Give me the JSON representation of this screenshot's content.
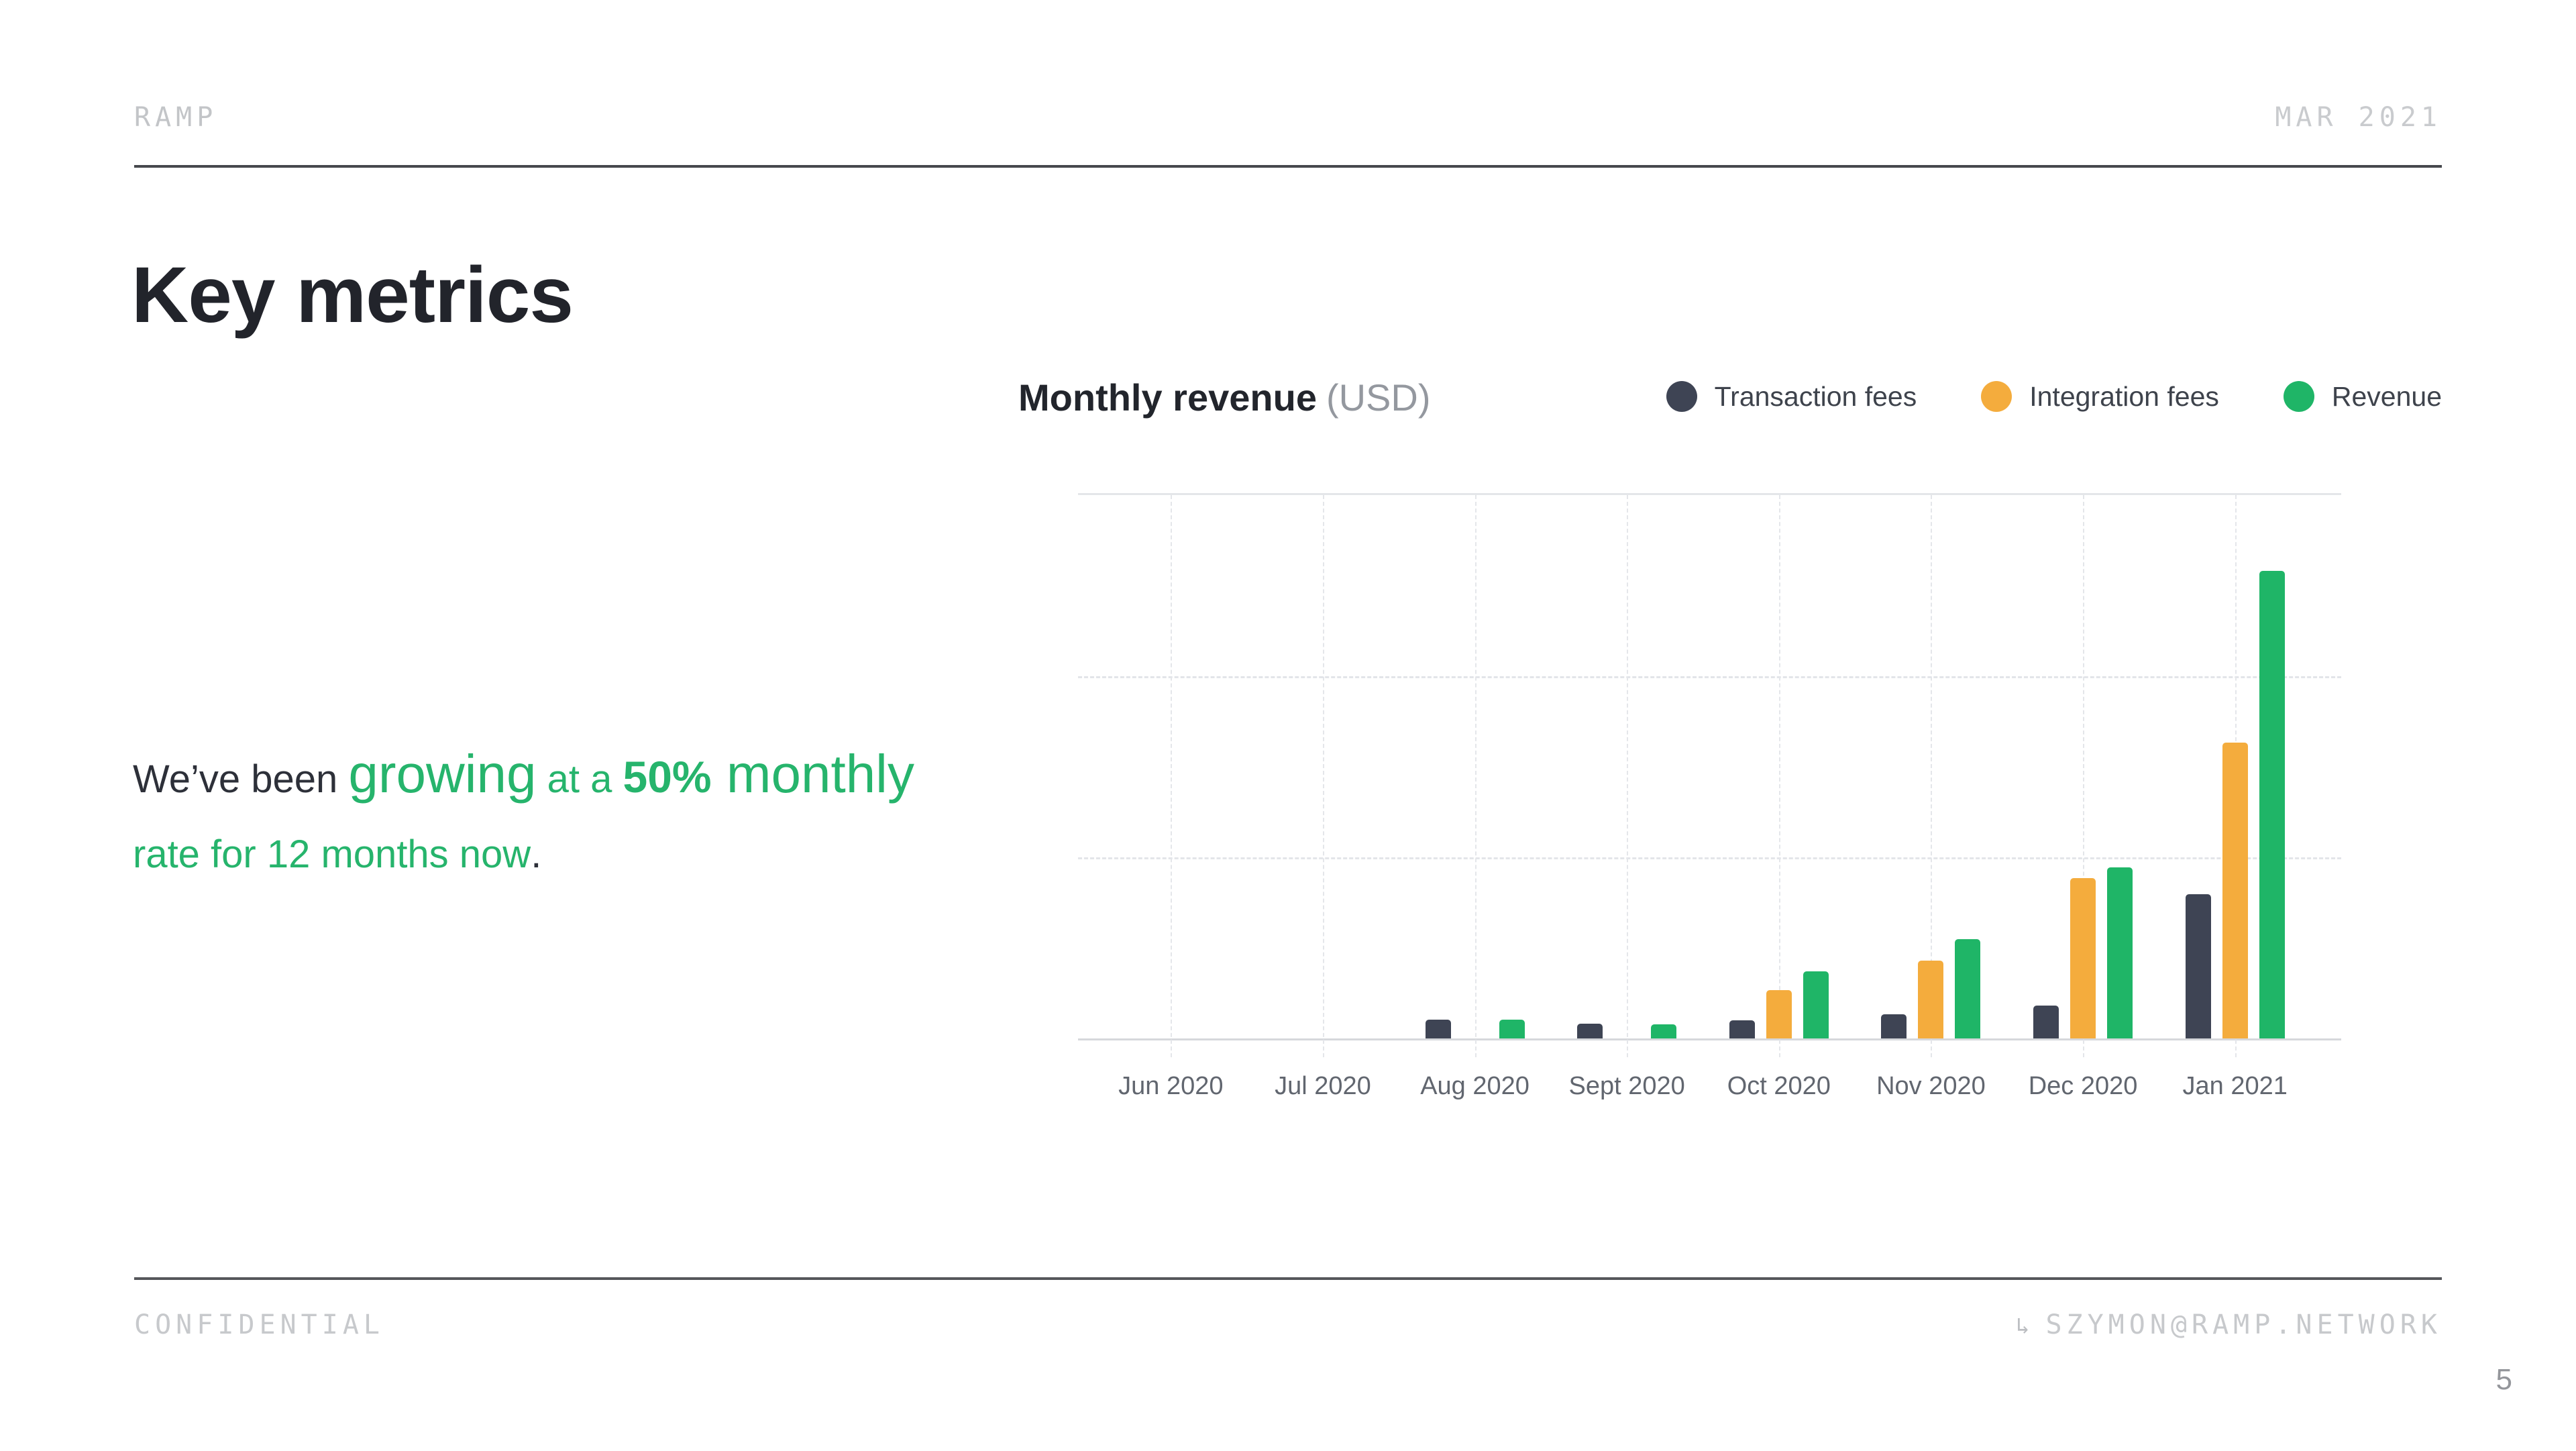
{
  "header": {
    "brand": "RAMP",
    "date": "MAR 2021"
  },
  "title": "Key metrics",
  "highlight": {
    "seg_dark": "We’ve been ",
    "seg_growing": "growing",
    "seg_mid": " at a ",
    "seg_pct": "50%",
    "seg_monthly": " monthly",
    "line2": "rate for 12 months now",
    "period": "."
  },
  "chart": {
    "title": "Monthly revenue",
    "unit": "(USD)"
  },
  "chart_data": {
    "type": "bar",
    "title": "Monthly revenue (USD)",
    "xlabel": "Month",
    "ylabel": "",
    "y_axis_labeled": false,
    "ylim": [
      0,
      100
    ],
    "gridlines_pct_from_top": [
      33.33,
      66.67
    ],
    "legend_position": "top-right",
    "categories": [
      "Jun 2020",
      "Jul 2020",
      "Aug 2020",
      "Sept 2020",
      "Oct 2020",
      "Nov 2020",
      "Dec 2020",
      "Jan 2021"
    ],
    "series": [
      {
        "name": "Transaction fees",
        "color": "#3E4454",
        "values": [
          0,
          0,
          3.4,
          2.7,
          3.3,
          4.5,
          6.0,
          26.5
        ]
      },
      {
        "name": "Integration fees",
        "color": "#F4AC3D",
        "values": [
          0,
          0,
          0,
          0,
          8.9,
          14.3,
          29.5,
          54.5
        ]
      },
      {
        "name": "Revenue",
        "color": "#1FB567",
        "values": [
          0,
          0,
          3.4,
          2.6,
          12.3,
          18.3,
          31.5,
          86.0
        ]
      }
    ],
    "value_note": "values are percent of plot height; y axis has no tick labels"
  },
  "footer": {
    "confidential": "CONFIDENTIAL",
    "arrow": "↳",
    "email": "SZYMON@RAMP.NETWORK",
    "page": "5"
  },
  "colors": {
    "accent_green": "#26B46C",
    "bar_dark": "#3E4454",
    "bar_yellow": "#F4AC3D",
    "bar_green": "#1FB567",
    "text_dark": "#22242B",
    "text_muted": "#C7C9CC"
  }
}
